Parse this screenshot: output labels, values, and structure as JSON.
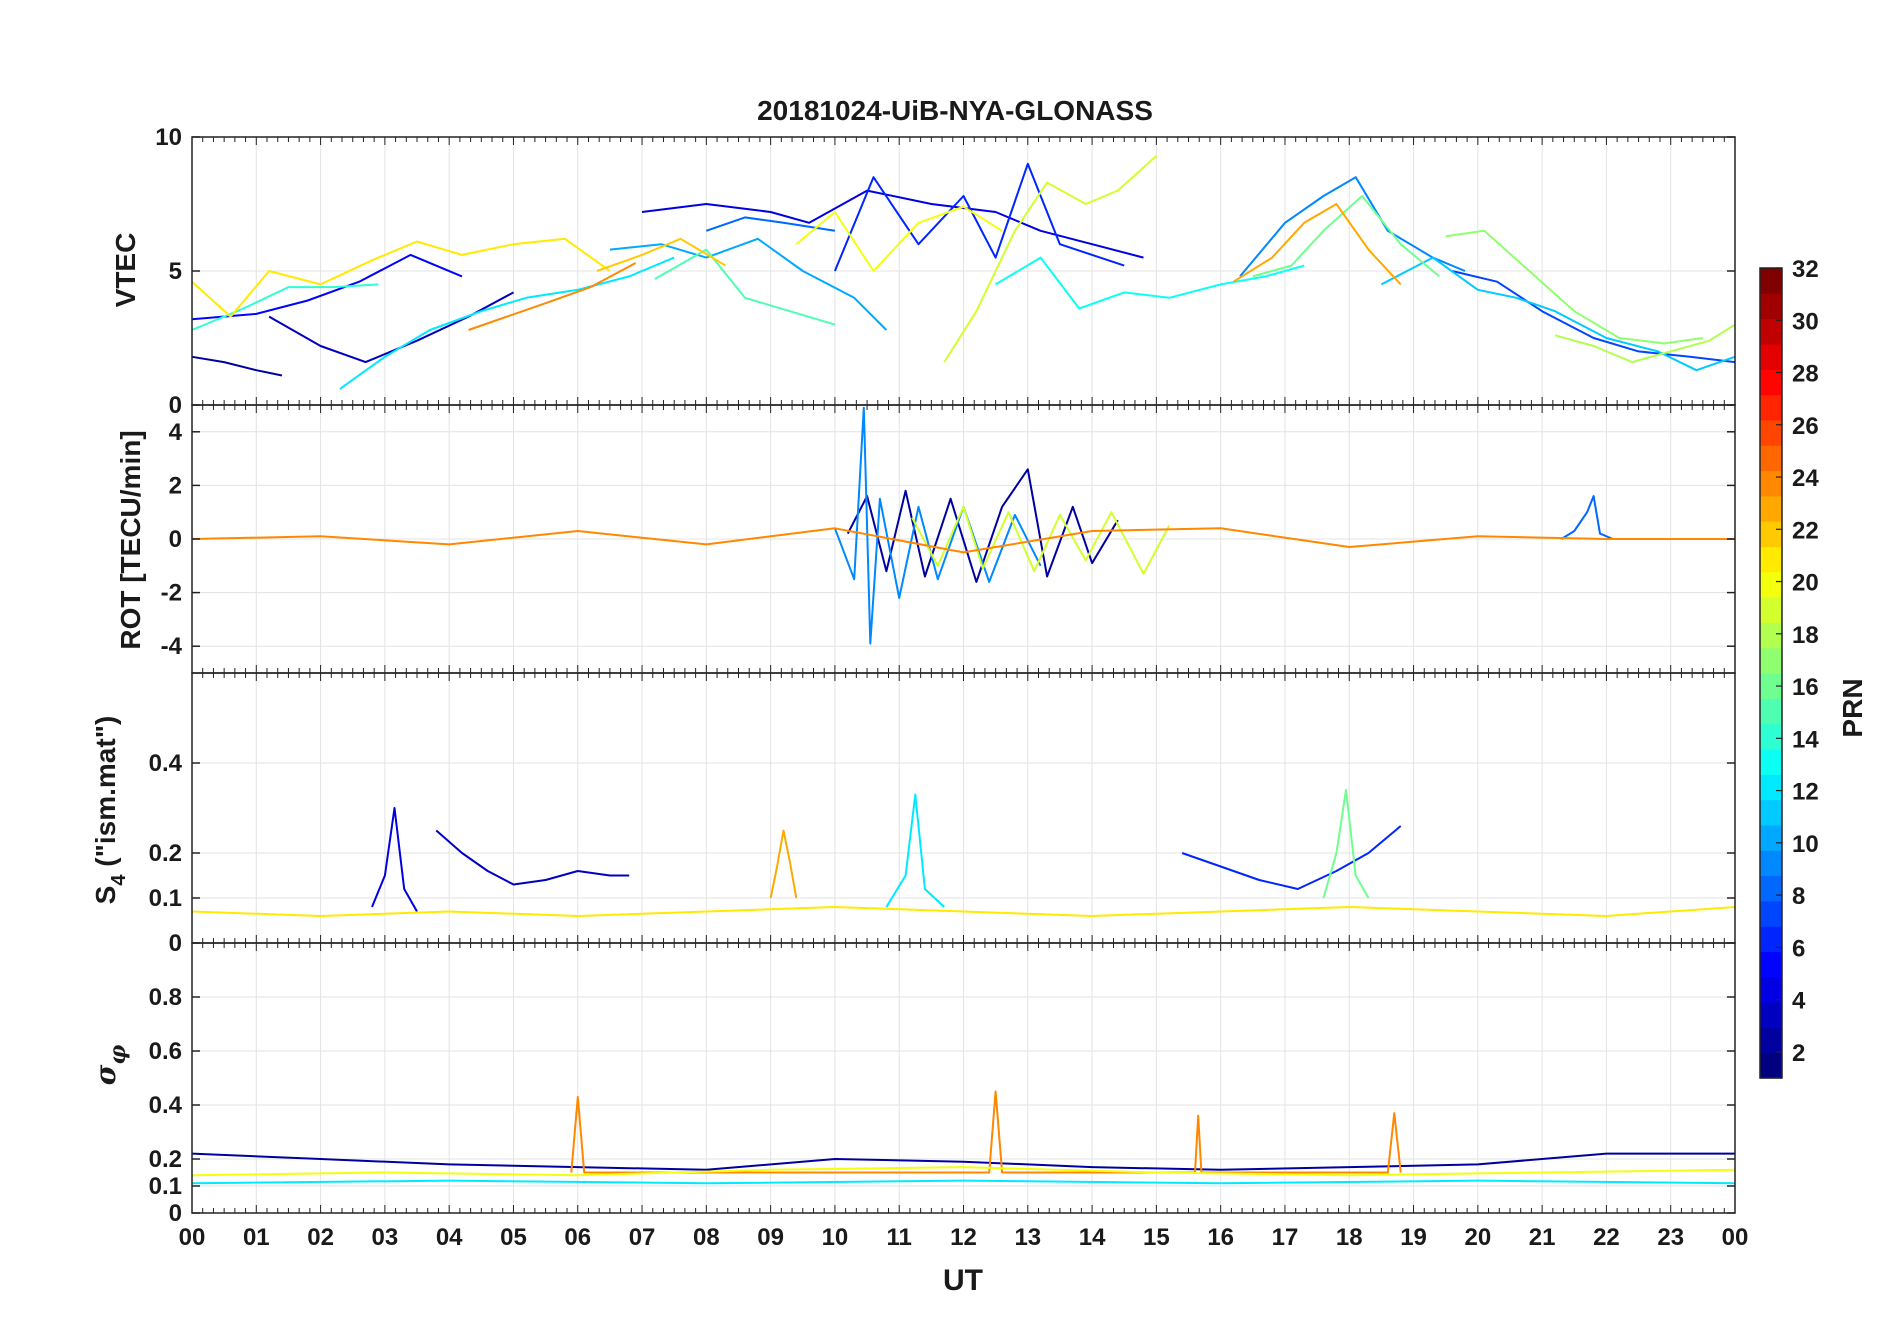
{
  "chart_data": [
    {
      "type": "line",
      "title": "20181024-UiB-NYA-GLONASS",
      "ylabel": "VTEC",
      "ylim": [
        0,
        10
      ],
      "yticks": [
        0,
        5,
        10
      ],
      "xlim": [
        0,
        24
      ],
      "x_tick_labels": [
        "00",
        "01",
        "02",
        "03",
        "04",
        "05",
        "06",
        "07",
        "08",
        "09",
        "10",
        "11",
        "12",
        "13",
        "14",
        "15",
        "16",
        "17",
        "18",
        "19",
        "20",
        "21",
        "22",
        "23",
        "00"
      ],
      "series": [
        {
          "prn": 2,
          "x": [
            0,
            0.5,
            1,
            1.4
          ],
          "values": [
            1.8,
            1.6,
            1.3,
            1.1
          ]
        },
        {
          "prn": 3,
          "x": [
            1.2,
            2,
            2.7,
            3.5,
            4.3,
            5
          ],
          "values": [
            3.3,
            2.2,
            1.6,
            2.4,
            3.3,
            4.2
          ]
        },
        {
          "prn": 4,
          "x": [
            7,
            8,
            9,
            9.6,
            10.5,
            11.5,
            12.5,
            13.2,
            14,
            14.8
          ],
          "values": [
            7.2,
            7.5,
            7.2,
            6.8,
            8.0,
            7.5,
            7.2,
            6.5,
            6.0,
            5.5
          ]
        },
        {
          "prn": 5,
          "x": [
            0,
            1,
            1.8,
            2.6,
            3.4,
            4.2
          ],
          "values": [
            3.2,
            3.4,
            3.9,
            4.6,
            5.6,
            4.8
          ]
        },
        {
          "prn": 6,
          "x": [
            10,
            10.6,
            11.3,
            12,
            12.5,
            13,
            13.5,
            14.5
          ],
          "values": [
            5.0,
            8.5,
            6.0,
            7.8,
            5.5,
            9.0,
            6.0,
            5.2
          ]
        },
        {
          "prn": 7,
          "x": [
            19.6,
            20.3,
            21,
            21.8,
            22.5,
            23.3,
            24
          ],
          "values": [
            5.0,
            4.6,
            3.5,
            2.5,
            2.0,
            1.8,
            1.6
          ]
        },
        {
          "prn": 8,
          "x": [
            8,
            8.6,
            9.2,
            10
          ],
          "values": [
            6.5,
            7.0,
            6.8,
            6.5
          ]
        },
        {
          "prn": 9,
          "x": [
            16.3,
            17,
            17.6,
            18.1,
            18.6,
            19.3,
            19.8
          ],
          "values": [
            4.8,
            6.8,
            7.8,
            8.5,
            6.5,
            5.5,
            5.0
          ]
        },
        {
          "prn": 10,
          "x": [
            6.5,
            7.3,
            8,
            8.8,
            9.5,
            10.3,
            10.8
          ],
          "values": [
            5.8,
            6.0,
            5.5,
            6.2,
            5.0,
            4.0,
            2.8
          ]
        },
        {
          "prn": 11,
          "x": [
            18.5,
            19.3,
            20,
            20.6,
            21.2,
            22,
            22.8,
            23.4,
            24
          ],
          "values": [
            4.5,
            5.5,
            4.3,
            4.0,
            3.5,
            2.5,
            2.0,
            1.3,
            1.8
          ]
        },
        {
          "prn": 12,
          "x": [
            2.3,
            3.0,
            3.7,
            4.5,
            5.2,
            6.0,
            6.8,
            7.5
          ],
          "values": [
            0.6,
            1.8,
            2.8,
            3.5,
            4.0,
            4.3,
            4.8,
            5.5
          ]
        },
        {
          "prn": 13,
          "x": [
            12.5,
            13.2,
            13.8,
            14.5,
            15.2,
            16,
            16.7,
            17.3
          ],
          "values": [
            4.5,
            5.5,
            3.6,
            4.2,
            4.0,
            4.5,
            4.8,
            5.2
          ]
        },
        {
          "prn": 14,
          "x": [
            0,
            0.8,
            1.5,
            2.2,
            2.9
          ],
          "values": [
            2.8,
            3.6,
            4.4,
            4.4,
            4.5
          ]
        },
        {
          "prn": 15,
          "x": [
            7.2,
            8,
            8.6,
            9.3,
            10
          ],
          "values": [
            4.7,
            5.8,
            4.0,
            3.5,
            3.0
          ]
        },
        {
          "prn": 16,
          "x": [
            16.5,
            17.1,
            17.6,
            18.2,
            18.8,
            19.4
          ],
          "values": [
            4.8,
            5.2,
            6.5,
            7.8,
            6.0,
            4.8
          ]
        },
        {
          "prn": 17,
          "x": [
            19.5,
            20.1,
            20.8,
            21.5,
            22.2,
            22.9,
            23.5
          ],
          "values": [
            6.3,
            6.5,
            5.0,
            3.5,
            2.5,
            2.3,
            2.5
          ]
        },
        {
          "prn": 18,
          "x": [
            21.2,
            21.8,
            22.4,
            23,
            23.6,
            24
          ],
          "values": [
            2.6,
            2.2,
            1.6,
            2.0,
            2.4,
            3.0
          ]
        },
        {
          "prn": 19,
          "x": [
            11.7,
            12.2,
            12.8,
            13.3,
            13.9,
            14.4,
            15.0
          ],
          "values": [
            1.6,
            3.5,
            6.5,
            8.3,
            7.5,
            8.0,
            9.3
          ]
        },
        {
          "prn": 20,
          "x": [
            9.4,
            10,
            10.6,
            11.3,
            12,
            12.6
          ],
          "values": [
            6.0,
            7.2,
            5.0,
            6.8,
            7.4,
            6.5
          ]
        },
        {
          "prn": 21,
          "x": [
            0,
            0.6,
            1.2,
            2.0,
            2.8,
            3.5,
            4.2,
            5,
            5.8,
            6.5
          ],
          "values": [
            4.6,
            3.3,
            5.0,
            4.5,
            5.4,
            6.1,
            5.6,
            6.0,
            6.2,
            5.0
          ]
        },
        {
          "prn": 22,
          "x": [
            6.3,
            7.0,
            7.6,
            8.3
          ],
          "values": [
            5.0,
            5.6,
            6.2,
            5.2
          ]
        },
        {
          "prn": 23,
          "x": [
            16.2,
            16.8,
            17.3,
            17.8,
            18.3,
            18.8
          ],
          "values": [
            4.6,
            5.5,
            6.8,
            7.5,
            5.8,
            4.5
          ]
        },
        {
          "prn": 24,
          "x": [
            4.3,
            4.9,
            5.5,
            6.2,
            6.9
          ],
          "values": [
            2.8,
            3.3,
            3.8,
            4.4,
            5.3
          ]
        }
      ]
    },
    {
      "type": "line",
      "ylabel": "ROT [TECU/min]",
      "ylim": [
        -5,
        5
      ],
      "yticks": [
        -4,
        -2,
        0,
        2,
        4
      ],
      "xlim": [
        0,
        24
      ],
      "series": [
        {
          "prn": 2,
          "x": [
            10.2,
            10.5,
            10.8,
            11.1,
            11.4,
            11.8,
            12.2,
            12.6,
            13.0,
            13.3,
            13.7,
            14.0,
            14.4
          ],
          "values": [
            0.2,
            1.6,
            -1.2,
            1.8,
            -1.4,
            1.5,
            -1.6,
            1.2,
            2.6,
            -1.4,
            1.2,
            -0.9,
            0.7
          ]
        },
        {
          "prn": 9,
          "x": [
            10.0,
            10.3,
            10.45,
            10.55,
            10.7,
            11.0,
            11.3,
            11.6,
            12.0,
            12.4,
            12.8,
            13.2
          ],
          "values": [
            0.4,
            -1.5,
            4.9,
            -3.9,
            1.5,
            -2.2,
            1.2,
            -1.5,
            1.2,
            -1.6,
            0.9,
            -1.0
          ]
        },
        {
          "prn": 8,
          "x": [
            21.3,
            21.5,
            21.7,
            21.8,
            21.9,
            22.1
          ],
          "values": [
            0.0,
            0.3,
            1.0,
            1.6,
            0.2,
            0.0
          ]
        },
        {
          "prn": 19,
          "x": [
            11.2,
            11.6,
            12.0,
            12.3,
            12.7,
            13.1,
            13.5,
            13.9,
            14.3,
            14.8,
            15.2
          ],
          "values": [
            0.8,
            -1.0,
            1.2,
            -1.1,
            1.0,
            -1.2,
            0.9,
            -0.8,
            1.0,
            -1.3,
            0.5
          ]
        },
        {
          "prn": 24,
          "x": [
            0,
            2,
            4,
            6,
            8,
            10,
            12,
            14,
            16,
            18,
            20,
            22,
            24
          ],
          "values": [
            0.0,
            0.1,
            -0.2,
            0.3,
            -0.2,
            0.4,
            -0.5,
            0.3,
            0.4,
            -0.3,
            0.1,
            0.0,
            0.0
          ]
        }
      ]
    },
    {
      "type": "line",
      "ylabel": "S4 (\"ism.mat\")",
      "ylim": [
        0,
        0.6
      ],
      "yticks": [
        0,
        0.1,
        0.2,
        0.4
      ],
      "xlim": [
        0,
        24
      ],
      "series": [
        {
          "prn": 3,
          "x": [
            3.8,
            4.2,
            4.6,
            5,
            5.5,
            6,
            6.5,
            6.8
          ],
          "values": [
            0.25,
            0.2,
            0.16,
            0.13,
            0.14,
            0.16,
            0.15,
            0.15
          ]
        },
        {
          "prn": 4,
          "x": [
            2.8,
            3.0,
            3.15,
            3.3,
            3.5
          ],
          "values": [
            0.08,
            0.15,
            0.3,
            0.12,
            0.07
          ]
        },
        {
          "prn": 6,
          "x": [
            15.4,
            16,
            16.6,
            17.2,
            17.8,
            18.3,
            18.8
          ],
          "values": [
            0.2,
            0.17,
            0.14,
            0.12,
            0.16,
            0.2,
            0.26
          ]
        },
        {
          "prn": 12,
          "x": [
            10.8,
            11.1,
            11.25,
            11.4,
            11.7
          ],
          "values": [
            0.08,
            0.15,
            0.33,
            0.12,
            0.08
          ]
        },
        {
          "prn": 16,
          "x": [
            17.6,
            17.8,
            17.95,
            18.1,
            18.3
          ],
          "values": [
            0.1,
            0.2,
            0.34,
            0.15,
            0.1
          ]
        },
        {
          "prn": 23,
          "x": [
            9.0,
            9.1,
            9.2,
            9.3,
            9.4
          ],
          "values": [
            0.1,
            0.17,
            0.25,
            0.18,
            0.1
          ]
        },
        {
          "prn": 21,
          "x": [
            0,
            2,
            4,
            6,
            8,
            10,
            12,
            14,
            16,
            18,
            20,
            22,
            24
          ],
          "values": [
            0.07,
            0.06,
            0.07,
            0.06,
            0.07,
            0.08,
            0.07,
            0.06,
            0.07,
            0.08,
            0.07,
            0.06,
            0.08
          ]
        }
      ]
    },
    {
      "type": "line",
      "ylabel": "σφ",
      "xlabel": "UT",
      "ylim": [
        0,
        1
      ],
      "yticks": [
        0,
        0.1,
        0.2,
        0.4,
        0.6,
        0.8
      ],
      "xlim": [
        0,
        24
      ],
      "series": [
        {
          "prn": 2,
          "x": [
            0,
            2,
            4,
            6,
            8,
            10,
            12,
            14,
            16,
            18,
            20,
            22,
            24
          ],
          "values": [
            0.22,
            0.2,
            0.18,
            0.17,
            0.16,
            0.2,
            0.19,
            0.17,
            0.16,
            0.17,
            0.18,
            0.22,
            0.22
          ]
        },
        {
          "prn": 24,
          "x": [
            5.9,
            6.0,
            6.1,
            12.4,
            12.5,
            12.6,
            15.6,
            15.65,
            15.7,
            18.6,
            18.7,
            18.8
          ],
          "values": [
            0.15,
            0.43,
            0.15,
            0.15,
            0.45,
            0.15,
            0.15,
            0.36,
            0.15,
            0.15,
            0.37,
            0.15
          ]
        },
        {
          "prn": 20,
          "x": [
            0,
            3,
            6,
            9,
            12,
            15,
            18,
            21,
            24
          ],
          "values": [
            0.14,
            0.15,
            0.14,
            0.16,
            0.17,
            0.15,
            0.14,
            0.15,
            0.16
          ]
        },
        {
          "prn": 12,
          "x": [
            0,
            4,
            8,
            12,
            16,
            20,
            24
          ],
          "values": [
            0.11,
            0.12,
            0.11,
            0.12,
            0.11,
            0.12,
            0.11
          ]
        }
      ]
    }
  ],
  "colorbar": {
    "label": "PRN",
    "min": 1,
    "max": 32,
    "ticks": [
      2,
      4,
      6,
      8,
      10,
      12,
      14,
      16,
      18,
      20,
      22,
      24,
      26,
      28,
      30,
      32
    ],
    "colormap": "jet"
  },
  "s4_sub": "4",
  "s4_rest": " (\"ism.mat\")",
  "sigma_sub": "φ"
}
